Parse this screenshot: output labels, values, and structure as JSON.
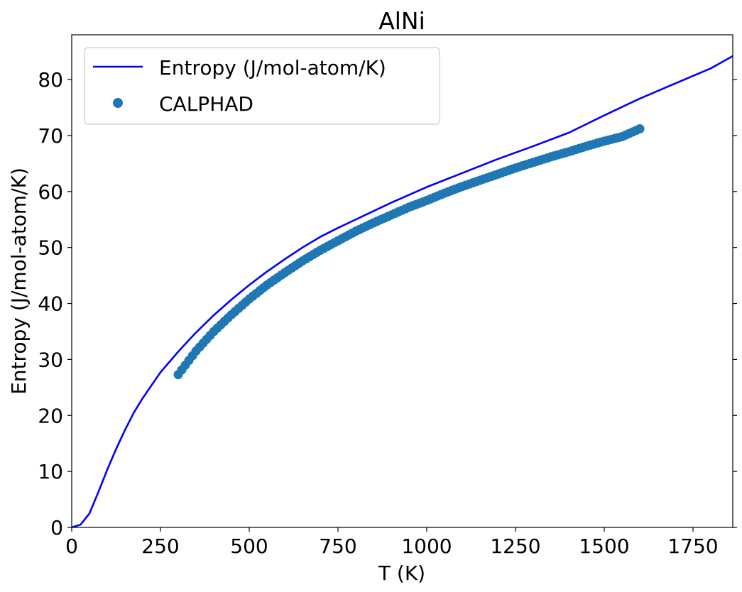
{
  "chart_data": {
    "type": "line",
    "title": "AlNi",
    "xlabel": "T (K)",
    "ylabel": "Entropy (J/mol-atom/K)",
    "xlim": [
      0,
      1862
    ],
    "ylim": [
      0,
      88
    ],
    "xticks": [
      0,
      250,
      500,
      750,
      1000,
      1250,
      1500,
      1750
    ],
    "yticks": [
      0,
      10,
      20,
      30,
      40,
      50,
      60,
      70,
      80
    ],
    "grid": false,
    "legend_position": "upper-left",
    "series": [
      {
        "name": "Entropy (J/mol-atom/K)",
        "kind": "line",
        "color": "#0000ff",
        "x": [
          0,
          25,
          50,
          75,
          100,
          125,
          150,
          175,
          200,
          250,
          300,
          350,
          400,
          450,
          500,
          550,
          600,
          650,
          700,
          750,
          800,
          900,
          1000,
          1100,
          1200,
          1300,
          1400,
          1500,
          1600,
          1700,
          1800,
          1862
        ],
        "y": [
          0,
          0.5,
          2.5,
          6.3,
          10.3,
          14.0,
          17.4,
          20.5,
          23.1,
          27.7,
          31.4,
          34.8,
          37.9,
          40.7,
          43.3,
          45.7,
          47.9,
          50.0,
          51.9,
          53.5,
          55.0,
          58.0,
          60.8,
          63.3,
          65.8,
          68.1,
          70.5,
          73.6,
          76.6,
          79.3,
          82.0,
          84.2
        ]
      },
      {
        "name": "CALPHAD",
        "kind": "scatter",
        "color": "#1f77b4",
        "x": [
          300,
          350,
          400,
          450,
          500,
          550,
          600,
          650,
          700,
          750,
          800,
          850,
          900,
          950,
          1000,
          1050,
          1100,
          1150,
          1200,
          1250,
          1300,
          1350,
          1400,
          1450,
          1500,
          1550,
          1600
        ],
        "y": [
          27.3,
          31.5,
          35.0,
          38.0,
          40.8,
          43.3,
          45.5,
          47.6,
          49.5,
          51.2,
          52.9,
          54.4,
          55.8,
          57.2,
          58.4,
          59.7,
          60.9,
          62.0,
          63.1,
          64.2,
          65.2,
          66.2,
          67.1,
          68.1,
          69.0,
          69.8,
          71.2
        ]
      }
    ]
  }
}
